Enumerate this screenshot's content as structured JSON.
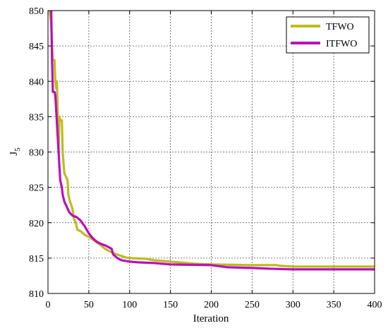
{
  "chart_data": {
    "type": "line",
    "xlabel": "Iteration",
    "ylabel": "J",
    "ylabel_sub": "5",
    "xlim": [
      0,
      400
    ],
    "ylim": [
      810,
      850
    ],
    "x_ticks": [
      0,
      50,
      100,
      150,
      200,
      250,
      300,
      350,
      400
    ],
    "y_ticks": [
      810,
      815,
      820,
      825,
      830,
      835,
      840,
      845,
      850
    ],
    "grid": true,
    "legend_position": "top-right",
    "series": [
      {
        "name": "TFWO",
        "color": "#bcbc1c",
        "points": [
          [
            2,
            850
          ],
          [
            4,
            848
          ],
          [
            5,
            845
          ],
          [
            6,
            843
          ],
          [
            8,
            843
          ],
          [
            9,
            840
          ],
          [
            10,
            839
          ],
          [
            11,
            840
          ],
          [
            12,
            835
          ],
          [
            13,
            830
          ],
          [
            14,
            835
          ],
          [
            15,
            834.5
          ],
          [
            17,
            834.5
          ],
          [
            18,
            830
          ],
          [
            20,
            827
          ],
          [
            22,
            826.5
          ],
          [
            24,
            826
          ],
          [
            25,
            824
          ],
          [
            27,
            823
          ],
          [
            30,
            822
          ],
          [
            32,
            820.5
          ],
          [
            34,
            820
          ],
          [
            36,
            819
          ],
          [
            40,
            818.8
          ],
          [
            45,
            818.3
          ],
          [
            50,
            818
          ],
          [
            55,
            817.6
          ],
          [
            60,
            817.2
          ],
          [
            65,
            816.8
          ],
          [
            70,
            816.3
          ],
          [
            75,
            816
          ],
          [
            80,
            815.7
          ],
          [
            85,
            815.5
          ],
          [
            90,
            815.3
          ],
          [
            95,
            815.1
          ],
          [
            100,
            815
          ],
          [
            120,
            814.9
          ],
          [
            130,
            814.7
          ],
          [
            150,
            814.5
          ],
          [
            180,
            814.2
          ],
          [
            200,
            814.1
          ],
          [
            250,
            814
          ],
          [
            280,
            814
          ],
          [
            285,
            813.9
          ],
          [
            300,
            813.8
          ],
          [
            350,
            813.8
          ],
          [
            400,
            813.8
          ]
        ]
      },
      {
        "name": "ITFWO",
        "color": "#bb0fbb",
        "points": [
          [
            4,
            850
          ],
          [
            5,
            843
          ],
          [
            6,
            838.5
          ],
          [
            8,
            838.5
          ],
          [
            9,
            838
          ],
          [
            10,
            836
          ],
          [
            12,
            832
          ],
          [
            14,
            828
          ],
          [
            15,
            826
          ],
          [
            17,
            825
          ],
          [
            18,
            824
          ],
          [
            20,
            823
          ],
          [
            24,
            822
          ],
          [
            26,
            821.5
          ],
          [
            30,
            821
          ],
          [
            35,
            820.8
          ],
          [
            40,
            820.3
          ],
          [
            45,
            819.5
          ],
          [
            50,
            818.5
          ],
          [
            55,
            817.8
          ],
          [
            60,
            817.3
          ],
          [
            65,
            817
          ],
          [
            70,
            816.8
          ],
          [
            75,
            816.5
          ],
          [
            78,
            816.3
          ],
          [
            80,
            815.5
          ],
          [
            85,
            815
          ],
          [
            90,
            814.7
          ],
          [
            100,
            814.5
          ],
          [
            110,
            814.4
          ],
          [
            130,
            814.3
          ],
          [
            150,
            814.1
          ],
          [
            200,
            814
          ],
          [
            220,
            813.7
          ],
          [
            250,
            813.6
          ],
          [
            270,
            813.5
          ],
          [
            300,
            813.4
          ],
          [
            350,
            813.4
          ],
          [
            400,
            813.4
          ]
        ]
      }
    ]
  }
}
